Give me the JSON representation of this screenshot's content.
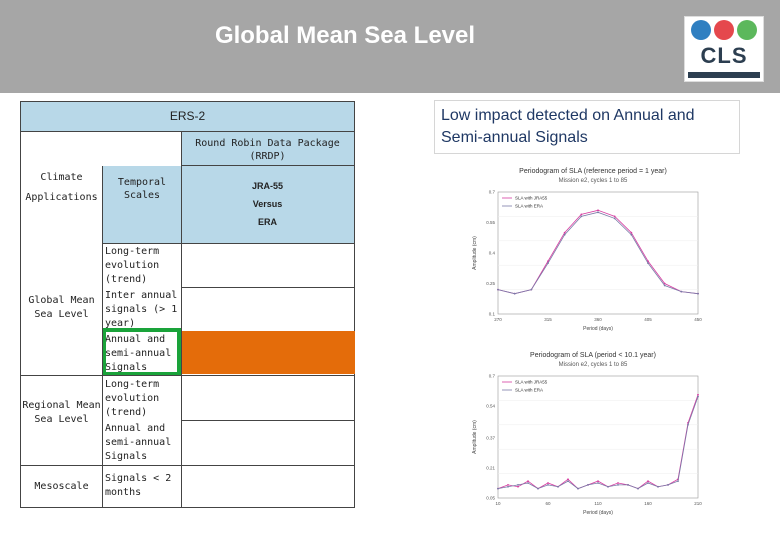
{
  "header": {
    "title": "Global Mean Sea Level",
    "bg": "#a6a6a6"
  },
  "logo": {
    "text": "CLS",
    "colors": [
      "#2f7fc1",
      "#e5484d",
      "#5cb85c"
    ]
  },
  "table": {
    "ers2": "ERS-2",
    "rrdp": "Round Robin Data Package (RRDP)",
    "climate_applications": "Climate Applications",
    "temporal_scales": "Temporal Scales",
    "jra55": "JRA-55",
    "versus": "Versus",
    "era": "ERA",
    "gmsl": "Global Mean Sea Level",
    "gmsl_scales": [
      "Long-term evolution (trend)",
      "Inter annual signals (> 1 year)",
      "Annual and semi-annual Signals"
    ],
    "rmsl": "Regional Mean Sea Level",
    "rmsl_scales": [
      "Long-term evolution (trend)",
      "Annual and semi-annual Signals"
    ],
    "mesoscale": "Mesoscale",
    "mesoscale_scales": [
      "Signals < 2 months"
    ]
  },
  "callout": {
    "text": "Low impact detected on Annual and Semi-annual Signals"
  },
  "charts": {
    "top_title": "Periodogram of SLA (reference period = 1 year)",
    "top_subtitle": "Mission e2, cycles 1 to 85",
    "top_legend": [
      "SLA with JRA55",
      "SLA with ERA"
    ],
    "top_xlabel": "Period (days)",
    "top_ylabel": "Amplitude (cm)",
    "bottom_title": "Periodogram of SLA (period < 10.1 year)",
    "bottom_subtitle": "Mission e2, cycles 1 to 85",
    "bottom_legend": [
      "SLA with JRA55",
      "SLA with ERA"
    ],
    "bottom_xlabel": "Period (days)",
    "bottom_ylabel": "Amplitude (cm)"
  },
  "chart_data": [
    {
      "type": "line",
      "title": "Periodogram of SLA (reference period = 1 year)",
      "xlabel": "Period (days)",
      "ylabel": "Amplitude (cm)",
      "x": [
        270,
        285,
        300,
        315,
        330,
        345,
        360,
        375,
        390,
        405,
        420,
        435,
        450
      ],
      "series": [
        {
          "name": "SLA with JRA55",
          "color": "#d63ca0",
          "values": [
            0.22,
            0.2,
            0.22,
            0.36,
            0.5,
            0.59,
            0.61,
            0.58,
            0.5,
            0.36,
            0.25,
            0.21,
            0.2
          ]
        },
        {
          "name": "SLA with ERA",
          "color": "#7a7aa8",
          "values": [
            0.22,
            0.2,
            0.22,
            0.35,
            0.49,
            0.58,
            0.6,
            0.57,
            0.49,
            0.35,
            0.24,
            0.21,
            0.2
          ]
        }
      ],
      "ylim": [
        0.1,
        0.7
      ]
    },
    {
      "type": "line",
      "title": "Periodogram of SLA (period < 10.1 year)",
      "xlabel": "Period (days)",
      "ylabel": "Amplitude (cm)",
      "x": [
        10,
        20,
        30,
        40,
        50,
        60,
        70,
        80,
        90,
        100,
        110,
        120,
        130,
        140,
        150,
        160,
        170,
        180,
        190,
        200,
        210
      ],
      "series": [
        {
          "name": "SLA with JRA55",
          "color": "#d63ca0",
          "values": [
            0.1,
            0.12,
            0.11,
            0.14,
            0.1,
            0.13,
            0.11,
            0.15,
            0.1,
            0.12,
            0.14,
            0.11,
            0.13,
            0.12,
            0.1,
            0.14,
            0.11,
            0.12,
            0.15,
            0.45,
            0.6
          ]
        },
        {
          "name": "SLA with ERA",
          "color": "#7a7aa8",
          "values": [
            0.1,
            0.11,
            0.12,
            0.13,
            0.1,
            0.12,
            0.11,
            0.14,
            0.1,
            0.12,
            0.13,
            0.11,
            0.12,
            0.12,
            0.1,
            0.13,
            0.11,
            0.12,
            0.14,
            0.44,
            0.59
          ]
        }
      ],
      "ylim": [
        0.05,
        0.7
      ]
    }
  ]
}
